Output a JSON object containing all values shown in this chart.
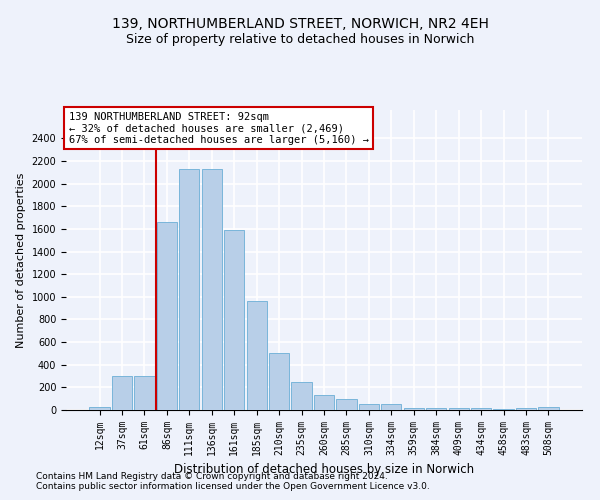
{
  "title1": "139, NORTHUMBERLAND STREET, NORWICH, NR2 4EH",
  "title2": "Size of property relative to detached houses in Norwich",
  "xlabel": "Distribution of detached houses by size in Norwich",
  "ylabel": "Number of detached properties",
  "categories": [
    "12sqm",
    "37sqm",
    "61sqm",
    "86sqm",
    "111sqm",
    "136sqm",
    "161sqm",
    "185sqm",
    "210sqm",
    "235sqm",
    "260sqm",
    "285sqm",
    "310sqm",
    "334sqm",
    "359sqm",
    "384sqm",
    "409sqm",
    "434sqm",
    "458sqm",
    "483sqm",
    "508sqm"
  ],
  "values": [
    25,
    300,
    300,
    1660,
    2130,
    2130,
    1590,
    960,
    505,
    245,
    130,
    100,
    50,
    50,
    20,
    18,
    18,
    15,
    10,
    18,
    25
  ],
  "bar_color": "#b8cfe8",
  "bar_edge_color": "#6baed6",
  "vline_index": 3,
  "vline_color": "#cc0000",
  "annotation_text": "139 NORTHUMBERLAND STREET: 92sqm\n← 32% of detached houses are smaller (2,469)\n67% of semi-detached houses are larger (5,160) →",
  "annotation_box_facecolor": "white",
  "annotation_box_edgecolor": "#cc0000",
  "ylim": [
    0,
    2650
  ],
  "yticks": [
    0,
    200,
    400,
    600,
    800,
    1000,
    1200,
    1400,
    1600,
    1800,
    2000,
    2200,
    2400
  ],
  "footnote1": "Contains HM Land Registry data © Crown copyright and database right 2024.",
  "footnote2": "Contains public sector information licensed under the Open Government Licence v3.0.",
  "background_color": "#eef2fb",
  "grid_color": "white",
  "title1_fontsize": 10,
  "title2_fontsize": 9,
  "xlabel_fontsize": 8.5,
  "ylabel_fontsize": 8,
  "tick_fontsize": 7,
  "annotation_fontsize": 7.5,
  "footnote_fontsize": 6.5
}
